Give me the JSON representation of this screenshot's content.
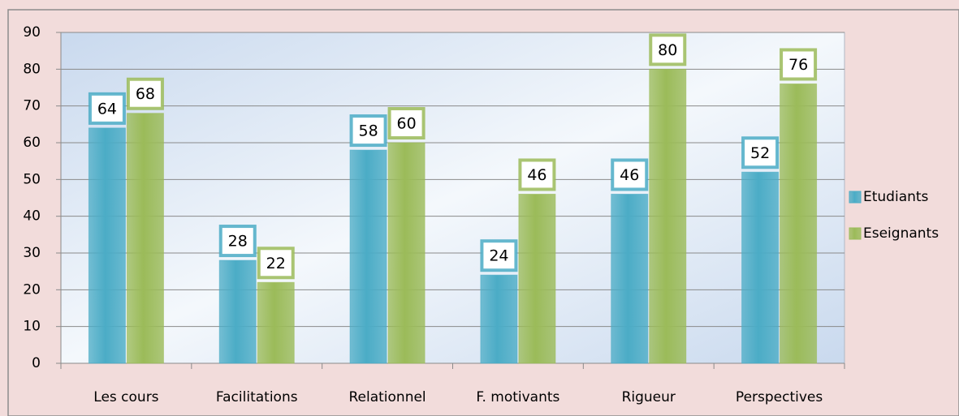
{
  "chart_data": {
    "type": "bar",
    "categories": [
      "Les cours",
      "Facilitations",
      "Relationnel",
      "F. motivants",
      "Rigueur",
      "Perspectives"
    ],
    "series": [
      {
        "name": "Etudiants",
        "color": "#4bacc6",
        "values": [
          64,
          28,
          58,
          24,
          46,
          52
        ]
      },
      {
        "name": "Eseignants",
        "color": "#9bbb59",
        "values": [
          68,
          22,
          60,
          46,
          80,
          76
        ]
      }
    ],
    "ylim": [
      0,
      90
    ],
    "yticks": [
      0,
      10,
      20,
      30,
      40,
      50,
      60,
      70,
      80,
      90
    ],
    "grid": true,
    "legend": "right"
  }
}
